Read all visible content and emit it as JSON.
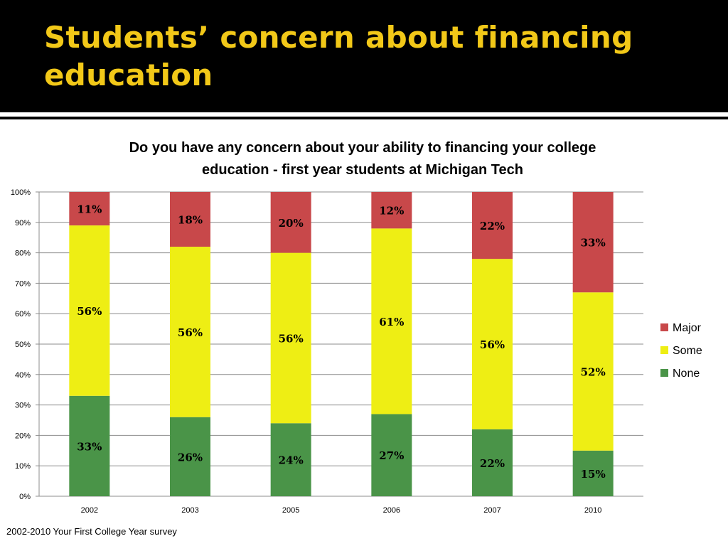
{
  "slide": {
    "title_line1": "Students’ concern about financing",
    "title_line2": "education",
    "title_color": "#f2c818",
    "source": "2002-2010 Your First College Year survey"
  },
  "chart_data": {
    "type": "bar",
    "stacked": true,
    "title_line1": "Do you have any concern about your ability to financing your college",
    "title_line2": "education - first  year students at Michigan Tech",
    "categories": [
      "2002",
      "2003",
      "2005",
      "2006",
      "2007",
      "2010"
    ],
    "series": [
      {
        "name": "None",
        "color": "#4a9448",
        "values": [
          33,
          26,
          24,
          27,
          22,
          15
        ]
      },
      {
        "name": "Some",
        "color": "#eeee14",
        "values": [
          56,
          56,
          56,
          61,
          56,
          52
        ]
      },
      {
        "name": "Major",
        "color": "#c8484a",
        "values": [
          11,
          18,
          20,
          12,
          22,
          33
        ]
      }
    ],
    "ylim": [
      0,
      100
    ],
    "y_ticks": [
      "0%",
      "10%",
      "20%",
      "30%",
      "40%",
      "50%",
      "60%",
      "70%",
      "80%",
      "90%",
      "100%"
    ],
    "legend_order": [
      "Major",
      "Some",
      "None"
    ],
    "legend_position": "right",
    "grid": true
  }
}
